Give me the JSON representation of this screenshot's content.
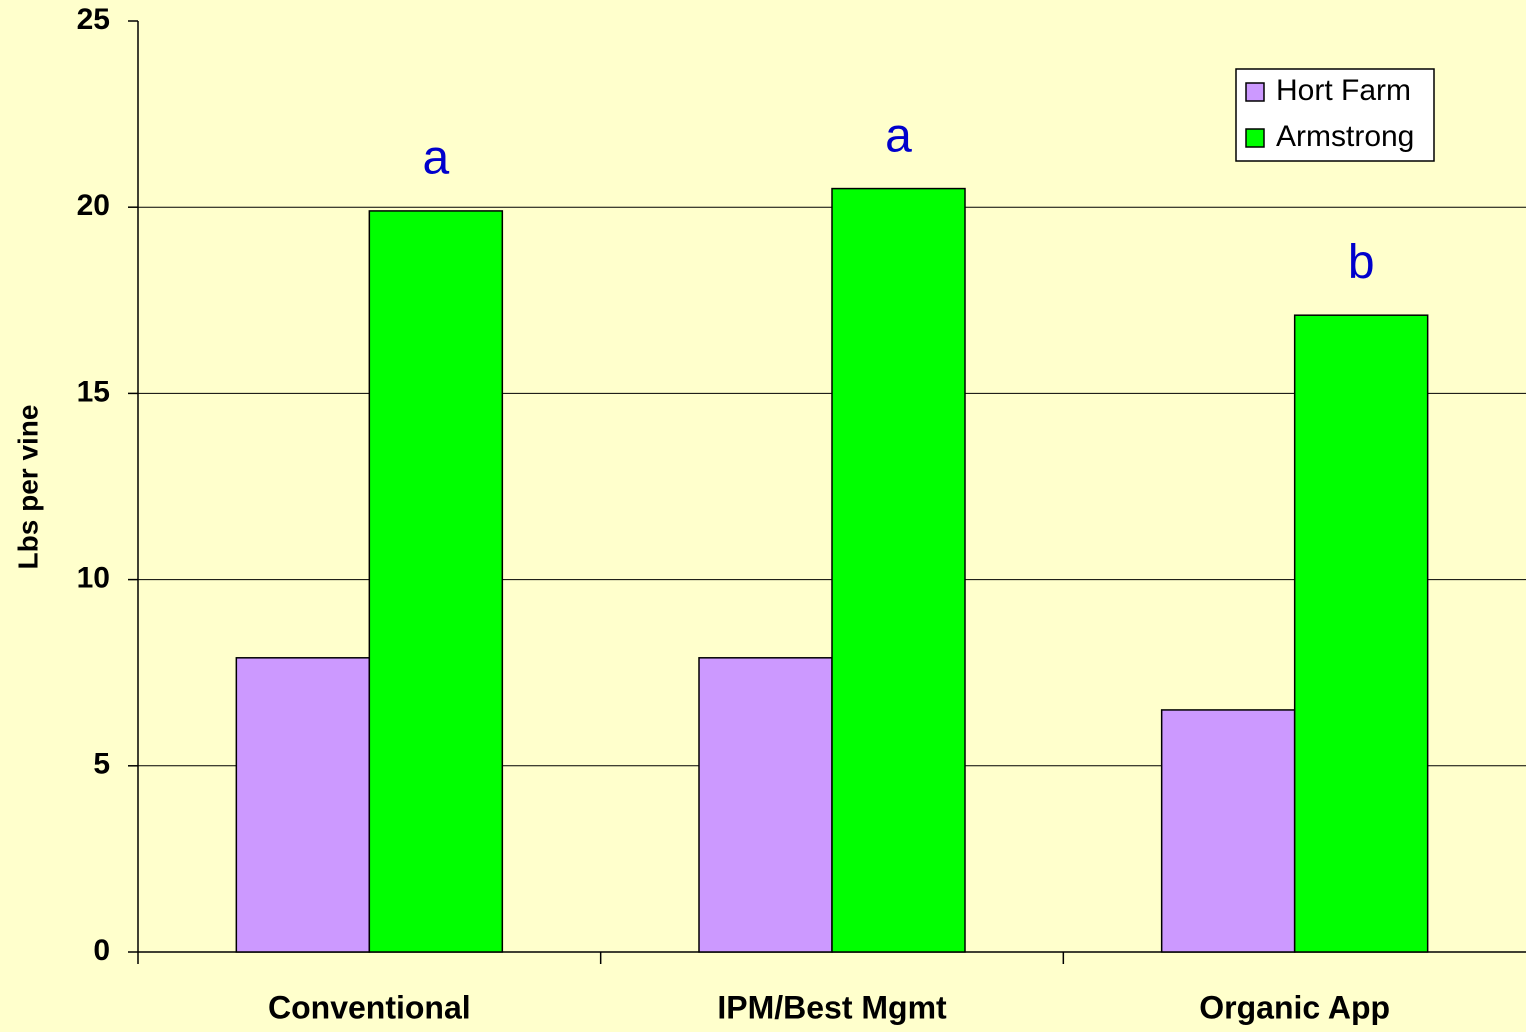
{
  "chart_data": {
    "type": "bar",
    "y_label": "Lbs per vine",
    "categories": [
      "Conventional",
      "IPM/Best Mgmt",
      "Organic App"
    ],
    "series": [
      {
        "name": "Hort Farm",
        "color": "#cc99ff",
        "values": [
          7.9,
          7.9,
          6.5
        ]
      },
      {
        "name": "Armstrong",
        "color": "#00ff00",
        "values": [
          19.9,
          20.5,
          17.1
        ],
        "annotations": [
          "a",
          "a",
          "b"
        ]
      }
    ],
    "ylim": [
      0,
      25
    ],
    "yticks": [
      0,
      5,
      10,
      15,
      20,
      25
    ],
    "grid": true,
    "legend": "upper right"
  }
}
